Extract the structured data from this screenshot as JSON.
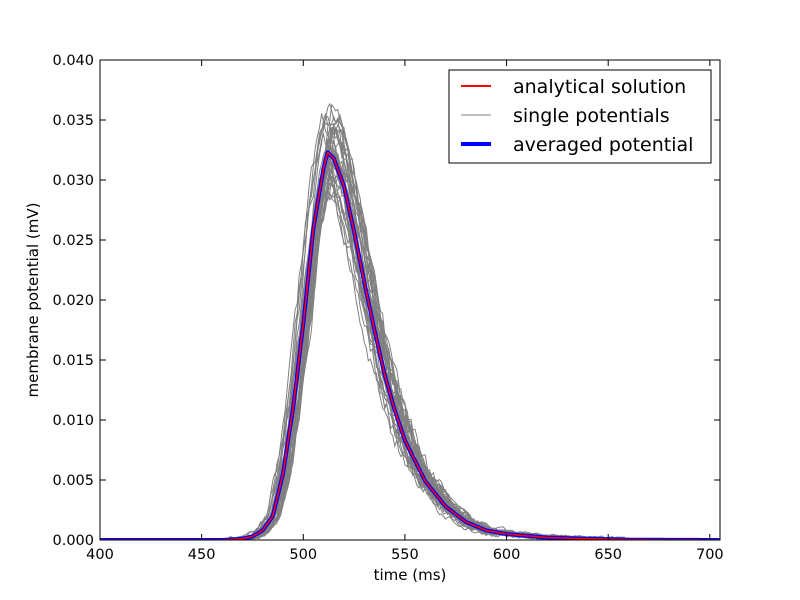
{
  "chart_data": {
    "type": "line",
    "title": "",
    "xlabel": "time (ms)",
    "ylabel": "membrane potential (mV)",
    "xlim": [
      400,
      705
    ],
    "ylim": [
      0,
      0.04
    ],
    "xticks": [
      400,
      450,
      500,
      550,
      600,
      650,
      700
    ],
    "xtick_labels": [
      "400",
      "450",
      "500",
      "550",
      "600",
      "650",
      "700"
    ],
    "yticks": [
      0,
      0.005,
      0.01,
      0.015,
      0.02,
      0.025,
      0.03,
      0.035,
      0.04
    ],
    "ytick_labels": [
      "0.000",
      "0.005",
      "0.010",
      "0.015",
      "0.020",
      "0.025",
      "0.030",
      "0.035",
      "0.040"
    ],
    "grid": false,
    "legend_position": "top-right",
    "legend": [
      {
        "label": "analytical solution",
        "color": "#ff0000",
        "width": 2
      },
      {
        "label": "single potentials",
        "color": "#808080",
        "width": 1
      },
      {
        "label": "averaged potential",
        "color": "#0000ff",
        "width": 4
      }
    ],
    "series": [
      {
        "name": "analytical solution",
        "color": "#ff0000",
        "x": [
          400,
          460,
          470,
          475,
          480,
          485,
          490,
          495,
          500,
          505,
          510,
          512,
          515,
          520,
          525,
          530,
          535,
          540,
          545,
          550,
          560,
          570,
          580,
          590,
          600,
          620,
          640,
          660,
          680,
          705
        ],
        "y": [
          0,
          0,
          0.0001,
          0.0003,
          0.0008,
          0.002,
          0.0055,
          0.011,
          0.018,
          0.026,
          0.031,
          0.0323,
          0.0318,
          0.0295,
          0.0257,
          0.0215,
          0.0175,
          0.0138,
          0.0108,
          0.0083,
          0.0049,
          0.0028,
          0.0015,
          0.0008,
          0.0005,
          0.0002,
          0.0001,
          3e-05,
          1e-05,
          0
        ]
      },
      {
        "name": "averaged potential",
        "color": "#0000ff",
        "x": [
          400,
          460,
          470,
          475,
          480,
          485,
          490,
          495,
          500,
          505,
          510,
          512,
          515,
          520,
          525,
          530,
          535,
          540,
          545,
          550,
          560,
          570,
          580,
          590,
          600,
          620,
          640,
          660,
          680,
          705
        ],
        "y": [
          0,
          0,
          0.0001,
          0.0003,
          0.0008,
          0.002,
          0.0055,
          0.011,
          0.018,
          0.026,
          0.031,
          0.0323,
          0.0318,
          0.0295,
          0.0257,
          0.0215,
          0.0175,
          0.0138,
          0.0108,
          0.0083,
          0.0049,
          0.0028,
          0.0015,
          0.0008,
          0.0005,
          0.0002,
          0.0001,
          3e-05,
          1e-05,
          0
        ]
      },
      {
        "name": "single potentials",
        "color": "#808080",
        "note_count": 40,
        "x": [
          400,
          460,
          470,
          475,
          480,
          485,
          490,
          495,
          500,
          505,
          510,
          512,
          515,
          520,
          525,
          530,
          535,
          540,
          545,
          550,
          560,
          570,
          580,
          590,
          600,
          620,
          640,
          660,
          680,
          705
        ],
        "y": [
          0,
          0,
          0.0001,
          0.0003,
          0.0008,
          0.002,
          0.0055,
          0.011,
          0.018,
          0.026,
          0.031,
          0.0323,
          0.0318,
          0.0295,
          0.0257,
          0.0215,
          0.0175,
          0.0138,
          0.0108,
          0.0083,
          0.0049,
          0.0028,
          0.0015,
          0.0008,
          0.0005,
          0.0002,
          0.0001,
          3e-05,
          1e-05,
          0
        ]
      }
    ]
  }
}
